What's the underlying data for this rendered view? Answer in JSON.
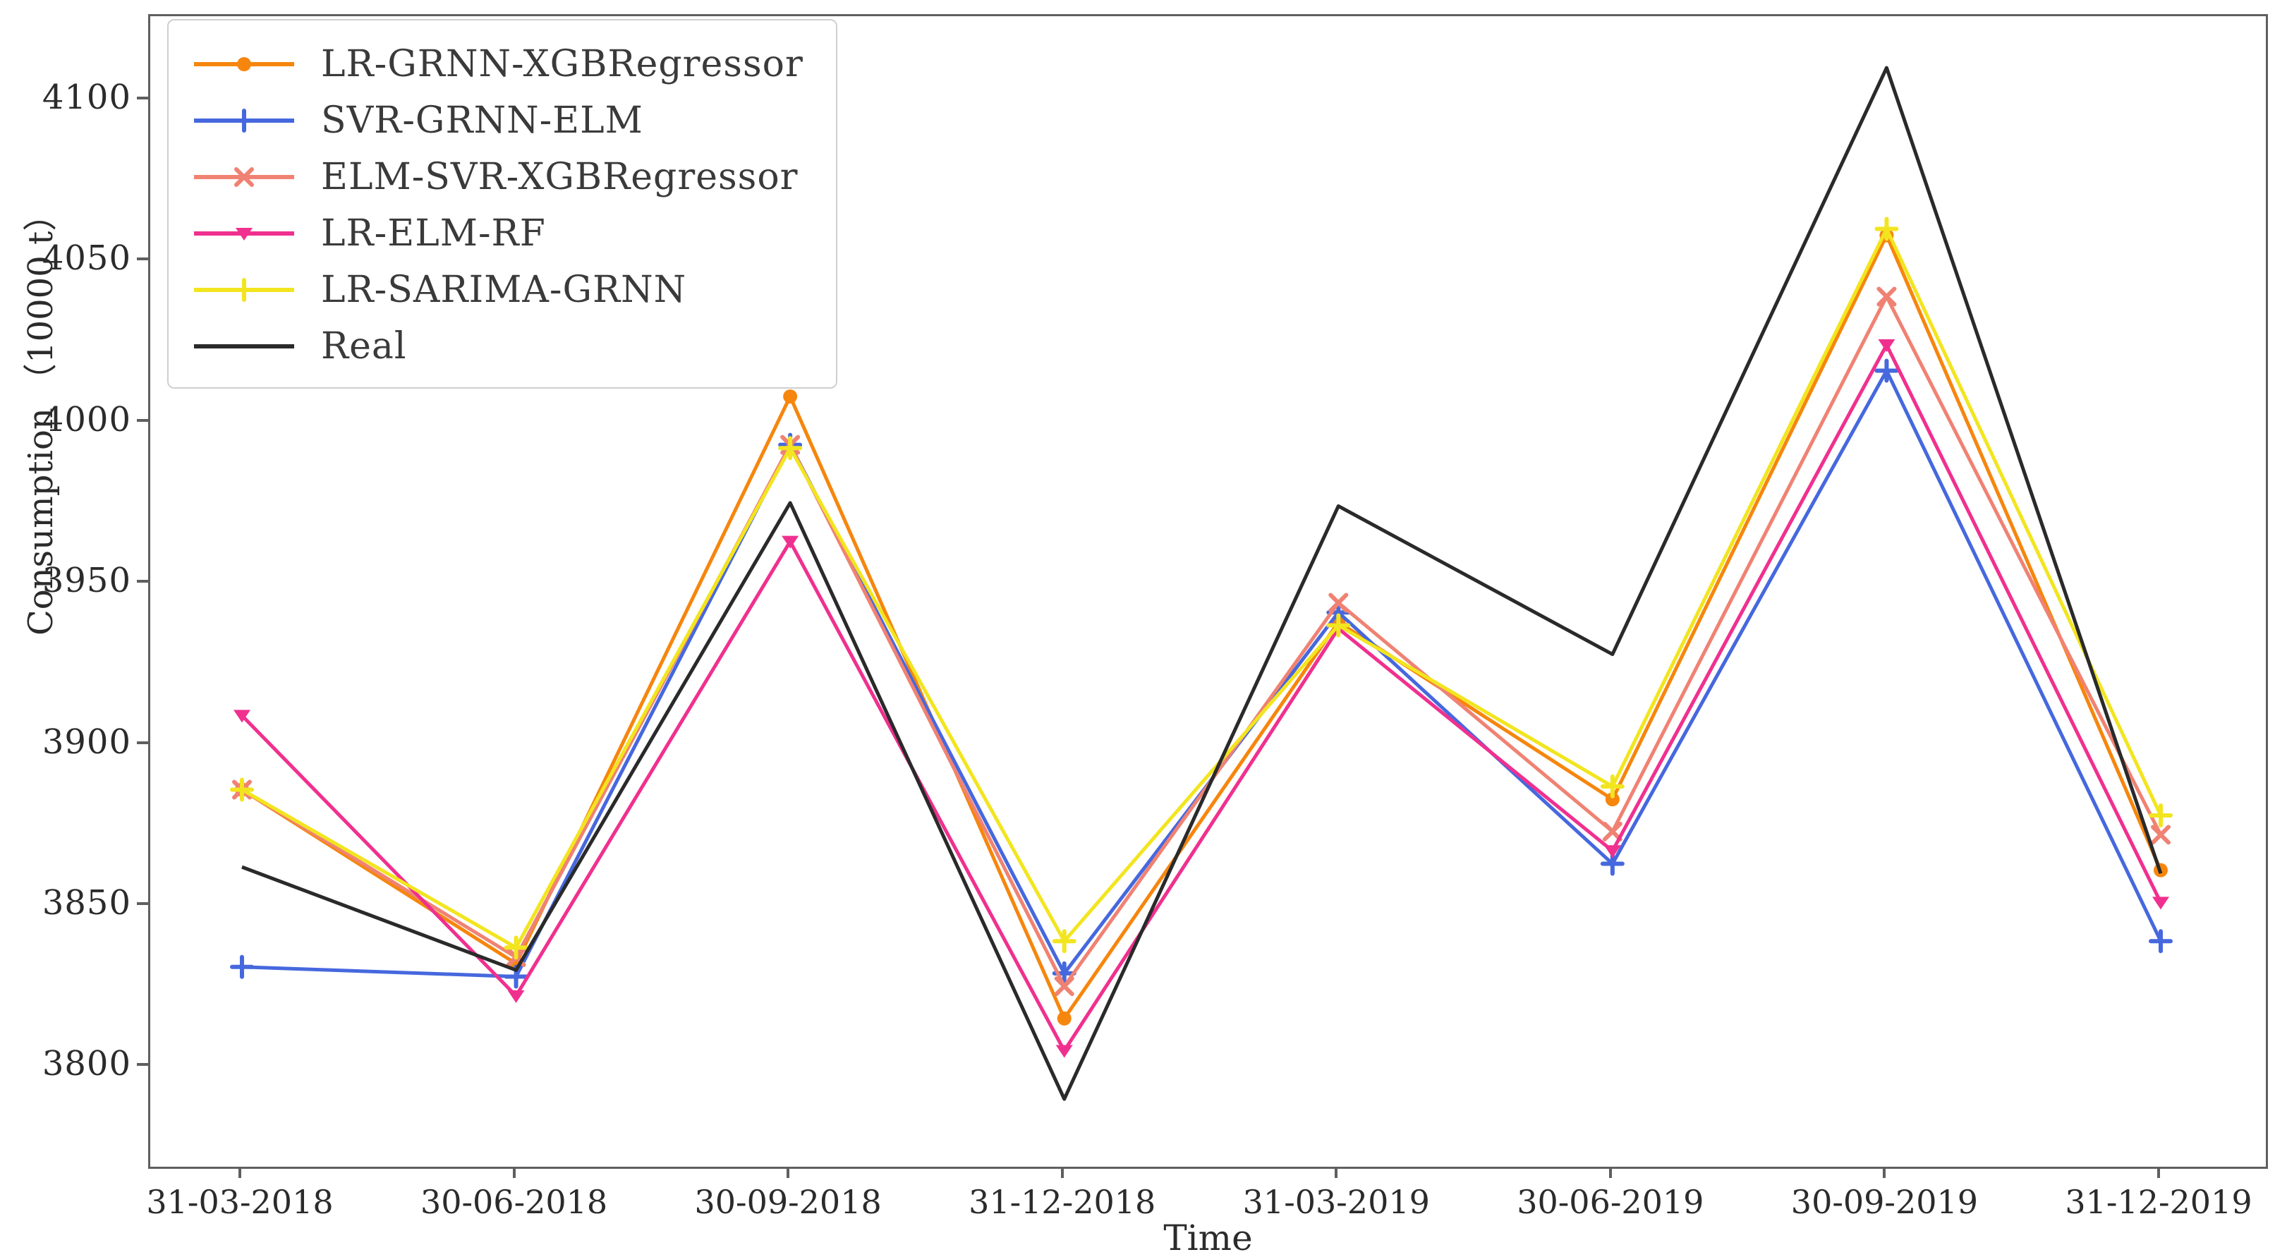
{
  "chart_data": {
    "type": "line",
    "title": "",
    "xlabel": "Time",
    "ylabel": "Consumption （10000 t）",
    "grid": false,
    "legend_position": "upper-left",
    "categories": [
      "31-03-2018",
      "30-06-2018",
      "30-09-2018",
      "31-12-2018",
      "31-03-2019",
      "30-06-2019",
      "30-09-2019",
      "31-12-2019"
    ],
    "y_ticks": [
      3800,
      3850,
      3900,
      3950,
      4000,
      4050,
      4100
    ],
    "ylim": [
      3769,
      4126
    ],
    "series": [
      {
        "name": "LR-GRNN-XGBRegressor",
        "color": "#F6860D",
        "marker": "dot",
        "values": [
          3886,
          3832,
          4008,
          3815,
          3938,
          3883,
          4058,
          3861
        ]
      },
      {
        "name": "SVR-GRNN-ELM",
        "color": "#4668DE",
        "marker": "plus",
        "values": [
          3831,
          3828,
          3993,
          3829,
          3941,
          3863,
          4016,
          3839
        ]
      },
      {
        "name": "ELM-SVR-XGBRegressor",
        "color": "#F08273",
        "marker": "x",
        "values": [
          3886,
          3834,
          3993,
          3825,
          3944,
          3873,
          4039,
          3872
        ]
      },
      {
        "name": "LR-ELM-RF",
        "color": "#F0308F",
        "marker": "triangle-down",
        "values": [
          3909,
          3822,
          3963,
          3805,
          3936,
          3867,
          4024,
          3851
        ]
      },
      {
        "name": "LR-SARIMA-GRNN",
        "color": "#F2E51F",
        "marker": "plus",
        "values": [
          3886,
          3837,
          3992,
          3839,
          3937,
          3887,
          4060,
          3878
        ]
      },
      {
        "name": "Real",
        "color": "#2A2A2A",
        "marker": "none",
        "values": [
          3862,
          3830,
          3975,
          3790,
          3974,
          3928,
          4110,
          3860
        ]
      }
    ]
  }
}
